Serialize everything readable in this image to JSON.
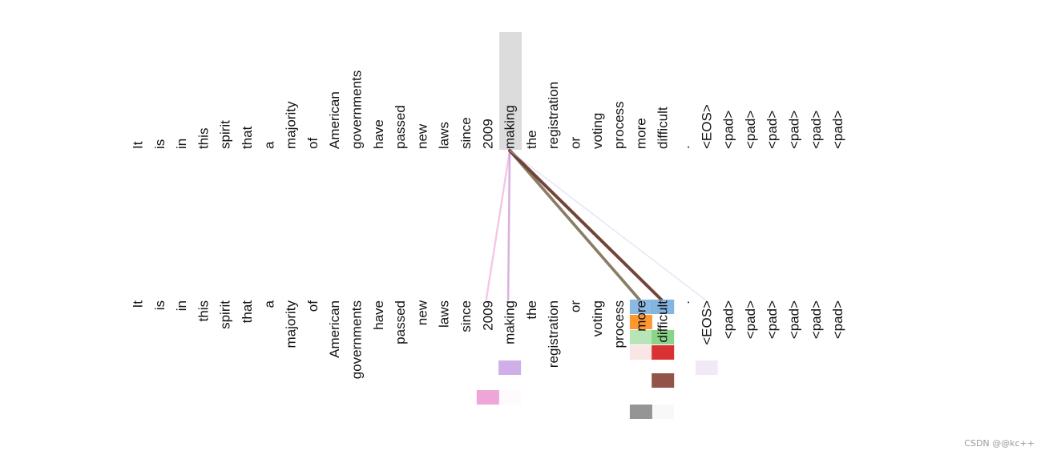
{
  "diagram": {
    "type": "attention-visualization",
    "top_tokens": [
      "It",
      "is",
      "in",
      "this",
      "spirit",
      "that",
      "a",
      "majority",
      "of",
      "American",
      "governments",
      "have",
      "passed",
      "new",
      "laws",
      "since",
      "2009",
      "making",
      "the",
      "registration",
      "or",
      "voting",
      "process",
      "more",
      "difficult",
      ".",
      "<EOS>",
      "<pad>",
      "<pad>",
      "<pad>",
      "<pad>",
      "<pad>",
      "<pad>"
    ],
    "bottom_tokens": [
      "It",
      "is",
      "in",
      "this",
      "spirit",
      "that",
      "a",
      "majority",
      "of",
      "American",
      "governments",
      "have",
      "passed",
      "new",
      "laws",
      "since",
      "2009",
      "making",
      "the",
      "registration",
      "or",
      "voting",
      "process",
      "more",
      "difficult",
      ".",
      "<EOS>",
      "<pad>",
      "<pad>",
      "<pad>",
      "<pad>",
      "<pad>",
      "<pad>"
    ],
    "selected_query": "making",
    "attention_links": [
      {
        "to": "2009",
        "color": "#f3a6d6",
        "strength": 0.5
      },
      {
        "to": "making",
        "color": "#c98bd6",
        "strength": 0.55
      },
      {
        "to": "more",
        "color": "#7a6e52",
        "strength": 0.9
      },
      {
        "to": "difficult",
        "color": "#6b3b2f",
        "strength": 1.0
      },
      {
        "to": "<EOS>",
        "color": "#d8ccf0",
        "strength": 0.25
      }
    ],
    "head_colors": [
      "#6fa8dc",
      "#ff8c1a",
      "#7ccf7c",
      "#d62728",
      "#8c4a3e",
      "#e377c2",
      "#8a8a8a",
      "#c9a6e4"
    ]
  },
  "watermark": "CSDN @@kc++"
}
